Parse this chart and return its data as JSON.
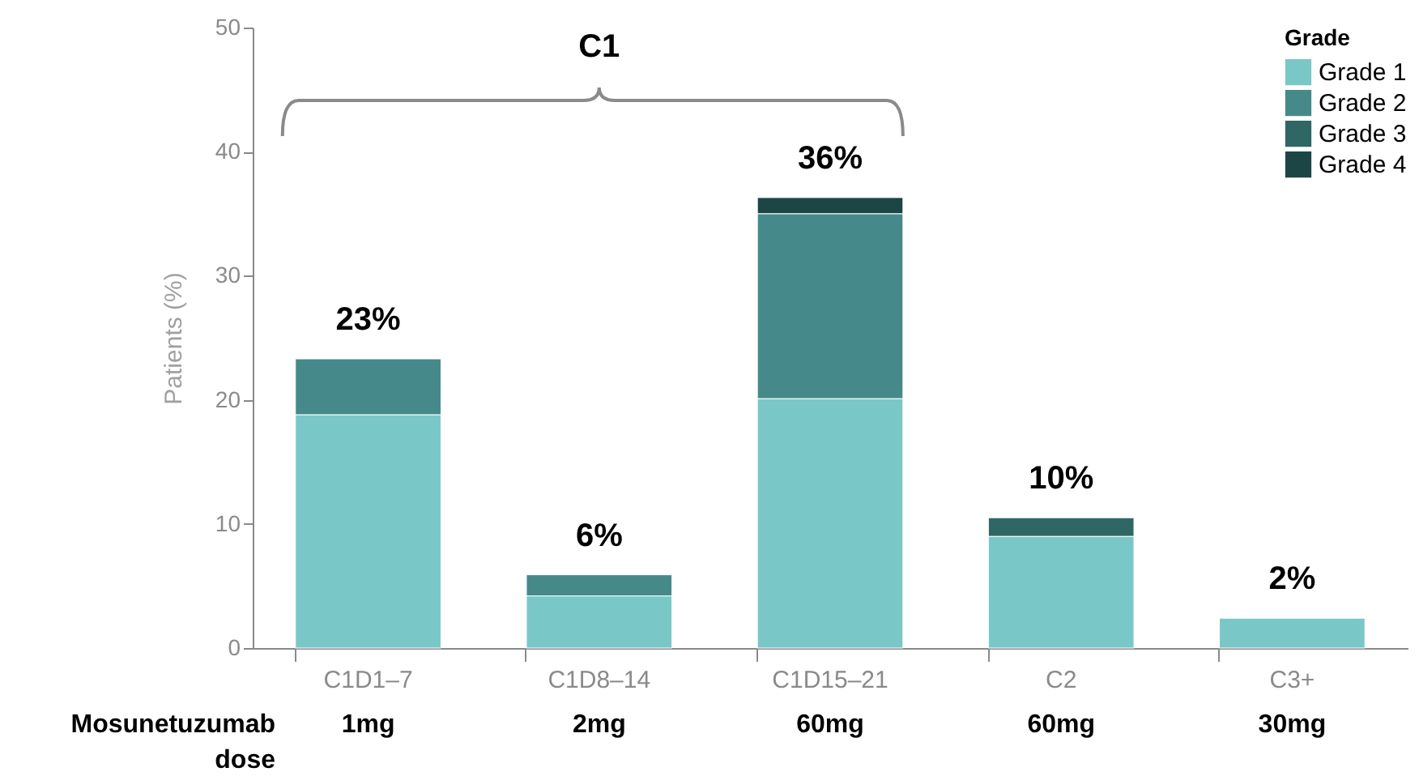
{
  "chart_data": {
    "type": "bar",
    "stacked": true,
    "ylabel": "Patients (%)",
    "legend_title": "Grade",
    "legend": "top right",
    "categories": [
      "C1D1–7",
      "C1D8–14",
      "C1D15–21",
      "C2",
      "C3+"
    ],
    "series": [
      {
        "name": "Grade 1",
        "color": "#7ac7c8",
        "values": [
          18.8,
          4.2,
          20.1,
          9.0,
          2.4
        ]
      },
      {
        "name": "Grade 2",
        "color": "#46898b",
        "values": [
          4.5,
          1.7,
          14.9,
          null,
          null
        ]
      },
      {
        "name": "Grade 3",
        "color": "#2f6764",
        "values": [
          null,
          null,
          null,
          1.5,
          null
        ]
      },
      {
        "name": "Grade 4",
        "color": "#1c4645",
        "values": [
          null,
          null,
          1.3,
          null,
          null
        ]
      }
    ],
    "totals": [
      "23%",
      "6%",
      "36%",
      "10%",
      "2%"
    ],
    "ylim": [
      0,
      50
    ],
    "yticks": [
      0,
      10,
      20,
      30,
      40,
      50
    ],
    "annotations": [
      "C1",
      "Mosunetuzumab dose",
      "1mg",
      "2mg",
      "60mg",
      "60mg",
      "30mg"
    ]
  }
}
